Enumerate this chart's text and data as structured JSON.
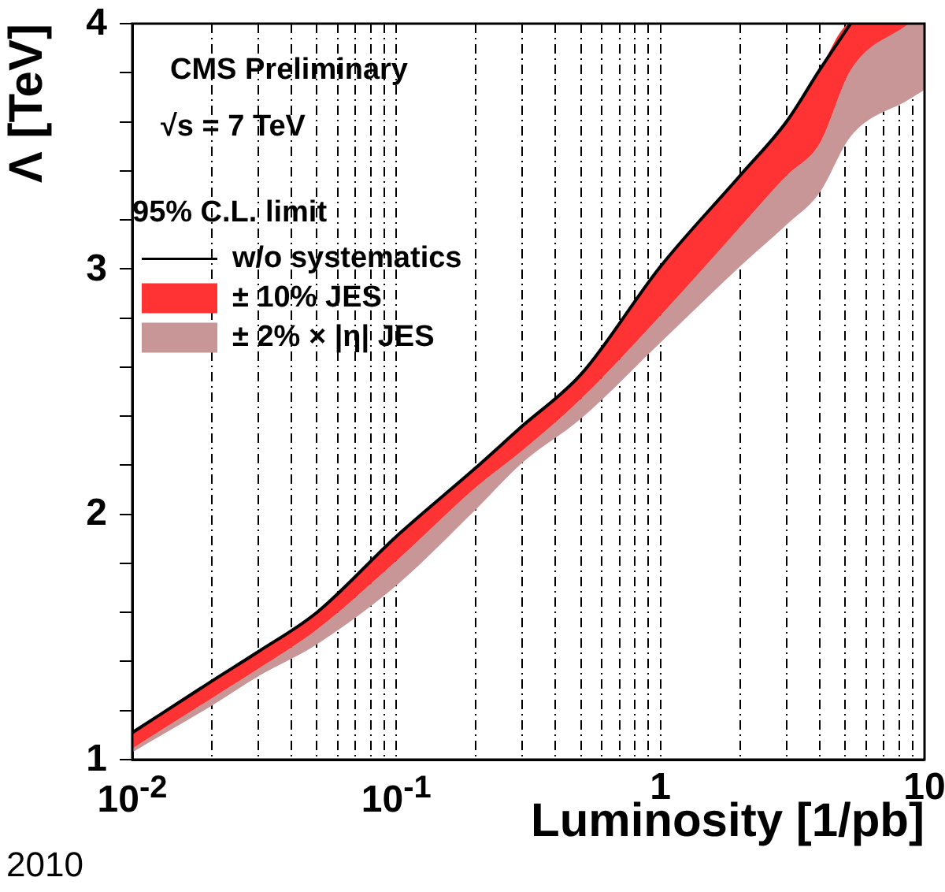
{
  "chart_data": {
    "type": "line",
    "xlabel": "Luminosity [1/pb]",
    "ylabel": "Λ [TeV]",
    "legend_title": "95% C.L. limit",
    "legend": "top left",
    "log": "x",
    "grid": "x",
    "annotations": [
      "CMS Preliminary",
      "√s = 7 TeV",
      "2010"
    ],
    "x": [
      0.01,
      0.02,
      0.03,
      0.05,
      0.1,
      0.2,
      0.3,
      0.5,
      1,
      2,
      3,
      4,
      5.25,
      8.7,
      10
    ],
    "series": [
      {
        "name": "w/o systematics",
        "type": "line",
        "color": "#000000",
        "values": [
          1.11,
          1.32,
          1.44,
          1.6,
          1.91,
          2.19,
          2.36,
          2.57,
          3.01,
          3.38,
          3.6,
          3.81,
          4,
          null,
          null
        ]
      },
      {
        "name": "± 10% JES",
        "type": "area",
        "color": "#ff3333",
        "values": [
          null,
          null,
          null,
          null,
          null,
          null,
          null,
          null,
          null,
          null,
          null,
          null,
          null,
          null,
          null
        ],
        "upper": [
          1.11,
          1.32,
          1.44,
          1.6,
          1.91,
          2.19,
          2.36,
          2.57,
          3.01,
          3.38,
          3.6,
          3.81,
          4,
          4,
          null
        ],
        "lower": [
          1.045,
          1.25,
          1.37,
          1.53,
          1.81,
          2.11,
          2.26,
          2.47,
          2.81,
          3.17,
          3.38,
          3.51,
          3.81,
          4,
          null
        ]
      },
      {
        "name": "± 2% × |η| JES",
        "type": "area",
        "color": "#c89696",
        "values": [
          null,
          null,
          null,
          null,
          null,
          null,
          null,
          null,
          null,
          null,
          null,
          null,
          null,
          null,
          null
        ],
        "upper": [
          1.045,
          1.25,
          1.37,
          1.53,
          1.81,
          2.11,
          2.26,
          2.47,
          2.81,
          3.17,
          3.38,
          3.51,
          3.81,
          4,
          4
        ],
        "lower": [
          1.03,
          1.22,
          1.34,
          1.47,
          1.71,
          2.02,
          2.21,
          2.39,
          2.7,
          3.01,
          3.18,
          3.31,
          3.54,
          3.69,
          3.73
        ]
      }
    ],
    "xlim": [
      0.01,
      10
    ],
    "ylim": [
      1,
      4
    ],
    "xticks": [
      {
        "value": 0.01,
        "label": "10$^{-2}$"
      },
      {
        "value": 0.02,
        "label": null
      },
      {
        "value": 0.03,
        "label": null
      },
      {
        "value": 0.04,
        "label": null
      },
      {
        "value": 0.05,
        "label": null
      },
      {
        "value": 0.06,
        "label": null
      },
      {
        "value": 0.07,
        "label": null
      },
      {
        "value": 0.08,
        "label": null
      },
      {
        "value": 0.09,
        "label": null
      },
      {
        "value": 0.1,
        "label": "10$^{-1}$"
      },
      {
        "value": 0.2,
        "label": null
      },
      {
        "value": 0.3,
        "label": null
      },
      {
        "value": 0.4,
        "label": null
      },
      {
        "value": 0.5,
        "label": null
      },
      {
        "value": 0.6,
        "label": null
      },
      {
        "value": 0.7,
        "label": null
      },
      {
        "value": 0.8,
        "label": null
      },
      {
        "value": 0.9,
        "label": null
      },
      1,
      {
        "value": 2,
        "label": null
      },
      {
        "value": 3,
        "label": null
      },
      {
        "value": 4,
        "label": null
      },
      {
        "value": 5,
        "label": null
      },
      {
        "value": 6,
        "label": null
      },
      {
        "value": 7,
        "label": null
      },
      {
        "value": 8,
        "label": null
      },
      {
        "value": 9,
        "label": null
      },
      10
    ],
    "yticks": [
      1,
      {
        "value": 1.2,
        "label": null
      },
      {
        "value": 1.4,
        "label": null
      },
      {
        "value": 1.6,
        "label": null
      },
      {
        "value": 1.8,
        "label": null
      },
      2,
      {
        "value": 2.2,
        "label": null
      },
      {
        "value": 2.4,
        "label": null
      },
      {
        "value": 2.6,
        "label": null
      },
      {
        "value": 2.8,
        "label": null
      },
      3,
      {
        "value": 3.2,
        "label": null
      },
      {
        "value": 3.4,
        "label": null
      },
      {
        "value": 3.6,
        "label": null
      },
      {
        "value": 3.8,
        "label": null
      },
      4
    ]
  }
}
